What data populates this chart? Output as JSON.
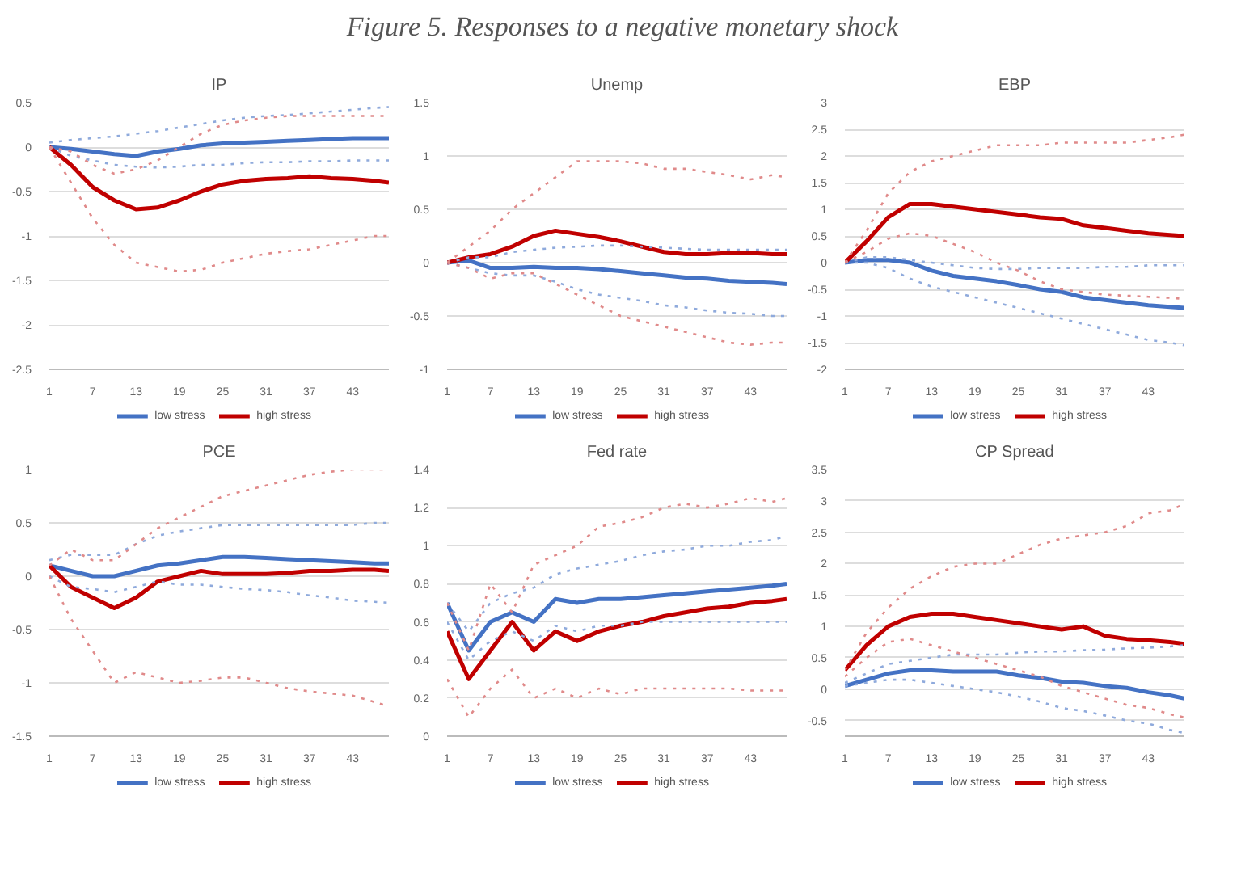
{
  "chart_data": [
    {
      "type": "line",
      "title": "IP",
      "annotations": [
        "Figure 5. Responses to a negative monetary shock"
      ],
      "x": [
        1,
        4,
        7,
        10,
        13,
        16,
        19,
        22,
        25,
        28,
        31,
        34,
        37,
        40,
        43,
        46,
        48
      ],
      "xlim": [
        1,
        48
      ],
      "xticks": [
        1,
        7,
        13,
        19,
        25,
        31,
        37,
        43
      ],
      "ylim": [
        -2.5,
        0.5
      ],
      "yticks": [
        0.5,
        0,
        -0.5,
        -1,
        -1.5,
        -2,
        -2.5
      ],
      "grid": "y",
      "legend": "bottom",
      "series": [
        {
          "color": "#8faadc",
          "line_style": "dotted",
          "values": [
            0.05,
            0.08,
            0.1,
            0.12,
            0.15,
            0.18,
            0.22,
            0.26,
            0.3,
            0.33,
            0.35,
            0.36,
            0.38,
            0.4,
            0.42,
            0.44,
            0.45
          ]
        },
        {
          "color": "#8faadc",
          "line_style": "dotted",
          "values": [
            0,
            -0.1,
            -0.15,
            -0.2,
            -0.22,
            -0.23,
            -0.22,
            -0.2,
            -0.2,
            -0.18,
            -0.17,
            -0.17,
            -0.16,
            -0.16,
            -0.15,
            -0.15,
            -0.15
          ]
        },
        {
          "color": "#e08a8a",
          "line_style": "dotted",
          "values": [
            0,
            -0.05,
            -0.2,
            -0.3,
            -0.25,
            -0.15,
            0,
            0.15,
            0.25,
            0.3,
            0.33,
            0.35,
            0.35,
            0.35,
            0.35,
            0.35,
            0.35
          ]
        },
        {
          "color": "#e08a8a",
          "line_style": "dotted",
          "values": [
            0,
            -0.4,
            -0.8,
            -1.1,
            -1.3,
            -1.35,
            -1.4,
            -1.38,
            -1.3,
            -1.25,
            -1.2,
            -1.17,
            -1.15,
            -1.1,
            -1.05,
            -1.0,
            -1.0
          ]
        },
        {
          "name": "low stress",
          "color": "#4472c4",
          "line_style": "solid",
          "values": [
            0,
            -0.02,
            -0.05,
            -0.08,
            -0.1,
            -0.05,
            -0.02,
            0.02,
            0.04,
            0.05,
            0.06,
            0.07,
            0.08,
            0.09,
            0.1,
            0.1,
            0.1
          ]
        },
        {
          "name": "high stress",
          "color": "#c00000",
          "line_style": "solid",
          "values": [
            0,
            -0.2,
            -0.45,
            -0.6,
            -0.7,
            -0.68,
            -0.6,
            -0.5,
            -0.42,
            -0.38,
            -0.36,
            -0.35,
            -0.33,
            -0.35,
            -0.36,
            -0.38,
            -0.4
          ]
        }
      ]
    },
    {
      "type": "line",
      "title": "Unemp",
      "x": [
        1,
        4,
        7,
        10,
        13,
        16,
        19,
        22,
        25,
        28,
        31,
        34,
        37,
        40,
        43,
        46,
        48
      ],
      "xlim": [
        1,
        48
      ],
      "xticks": [
        1,
        7,
        13,
        19,
        25,
        31,
        37,
        43
      ],
      "ylim": [
        -1,
        1.5
      ],
      "yticks": [
        1.5,
        1,
        0.5,
        0,
        -0.5,
        -1
      ],
      "grid": "y",
      "legend": "bottom",
      "series": [
        {
          "color": "#8faadc",
          "line_style": "dotted",
          "values": [
            0,
            0.05,
            0.05,
            0.1,
            0.12,
            0.14,
            0.15,
            0.16,
            0.16,
            0.15,
            0.14,
            0.13,
            0.12,
            0.12,
            0.12,
            0.12,
            0.12
          ]
        },
        {
          "color": "#8faadc",
          "line_style": "dotted",
          "values": [
            0,
            -0.05,
            -0.1,
            -0.12,
            -0.12,
            -0.18,
            -0.25,
            -0.3,
            -0.33,
            -0.36,
            -0.4,
            -0.42,
            -0.45,
            -0.47,
            -0.48,
            -0.5,
            -0.5
          ]
        },
        {
          "color": "#e08a8a",
          "line_style": "dotted",
          "values": [
            0,
            0.15,
            0.3,
            0.5,
            0.65,
            0.8,
            0.95,
            0.95,
            0.95,
            0.93,
            0.88,
            0.88,
            0.85,
            0.82,
            0.78,
            0.82,
            0.8
          ]
        },
        {
          "color": "#e08a8a",
          "line_style": "dotted",
          "values": [
            0,
            -0.05,
            -0.15,
            -0.1,
            -0.1,
            -0.2,
            -0.3,
            -0.4,
            -0.5,
            -0.55,
            -0.6,
            -0.65,
            -0.7,
            -0.75,
            -0.77,
            -0.75,
            -0.75
          ]
        },
        {
          "name": "low stress",
          "color": "#4472c4",
          "line_style": "solid",
          "values": [
            0,
            0.02,
            -0.05,
            -0.05,
            -0.04,
            -0.05,
            -0.05,
            -0.06,
            -0.08,
            -0.1,
            -0.12,
            -0.14,
            -0.15,
            -0.17,
            -0.18,
            -0.19,
            -0.2
          ]
        },
        {
          "name": "high stress",
          "color": "#c00000",
          "line_style": "solid",
          "values": [
            0,
            0.05,
            0.08,
            0.15,
            0.25,
            0.3,
            0.27,
            0.24,
            0.2,
            0.15,
            0.1,
            0.08,
            0.08,
            0.09,
            0.09,
            0.08,
            0.08
          ]
        }
      ]
    },
    {
      "type": "line",
      "title": "EBP",
      "x": [
        1,
        4,
        7,
        10,
        13,
        16,
        19,
        22,
        25,
        28,
        31,
        34,
        37,
        40,
        43,
        46,
        48
      ],
      "xlim": [
        1,
        48
      ],
      "xticks": [
        1,
        7,
        13,
        19,
        25,
        31,
        37,
        43
      ],
      "ylim": [
        -2,
        3
      ],
      "yticks": [
        3,
        2.5,
        2,
        1.5,
        1,
        0.5,
        0,
        -0.5,
        -1,
        -1.5,
        -2
      ],
      "grid": "y",
      "legend": "bottom",
      "series": [
        {
          "color": "#8faadc",
          "line_style": "dotted",
          "values": [
            0,
            0.1,
            0.1,
            0.05,
            0,
            -0.05,
            -0.1,
            -0.12,
            -0.12,
            -0.1,
            -0.1,
            -0.1,
            -0.08,
            -0.08,
            -0.05,
            -0.05,
            -0.05
          ]
        },
        {
          "color": "#8faadc",
          "line_style": "dotted",
          "values": [
            0,
            0,
            -0.1,
            -0.3,
            -0.45,
            -0.55,
            -0.65,
            -0.75,
            -0.85,
            -0.95,
            -1.05,
            -1.15,
            -1.25,
            -1.35,
            -1.45,
            -1.5,
            -1.55
          ]
        },
        {
          "color": "#e08a8a",
          "line_style": "dotted",
          "values": [
            0,
            0.6,
            1.3,
            1.7,
            1.9,
            2.0,
            2.1,
            2.2,
            2.2,
            2.2,
            2.25,
            2.25,
            2.25,
            2.25,
            2.3,
            2.35,
            2.4
          ]
        },
        {
          "color": "#e08a8a",
          "line_style": "dotted",
          "values": [
            0,
            0.2,
            0.45,
            0.55,
            0.5,
            0.35,
            0.2,
            0,
            -0.15,
            -0.35,
            -0.5,
            -0.55,
            -0.6,
            -0.62,
            -0.64,
            -0.66,
            -0.68
          ]
        },
        {
          "name": "low stress",
          "color": "#4472c4",
          "line_style": "solid",
          "values": [
            0,
            0.05,
            0.05,
            0,
            -0.15,
            -0.25,
            -0.3,
            -0.35,
            -0.42,
            -0.5,
            -0.55,
            -0.65,
            -0.7,
            -0.75,
            -0.8,
            -0.83,
            -0.85
          ]
        },
        {
          "name": "high stress",
          "color": "#c00000",
          "line_style": "solid",
          "values": [
            0,
            0.4,
            0.85,
            1.1,
            1.1,
            1.05,
            1.0,
            0.95,
            0.9,
            0.85,
            0.82,
            0.7,
            0.65,
            0.6,
            0.55,
            0.52,
            0.5
          ]
        }
      ]
    },
    {
      "type": "line",
      "title": "PCE",
      "x": [
        1,
        4,
        7,
        10,
        13,
        16,
        19,
        22,
        25,
        28,
        31,
        34,
        37,
        40,
        43,
        46,
        48
      ],
      "xlim": [
        1,
        48
      ],
      "xticks": [
        1,
        7,
        13,
        19,
        25,
        31,
        37,
        43
      ],
      "ylim": [
        -1.5,
        1
      ],
      "yticks": [
        1,
        0.5,
        0,
        -0.5,
        -1,
        -1.5
      ],
      "grid": "y",
      "legend": "bottom",
      "series": [
        {
          "color": "#8faadc",
          "line_style": "dotted",
          "values": [
            0.15,
            0.2,
            0.2,
            0.2,
            0.3,
            0.38,
            0.42,
            0.45,
            0.48,
            0.48,
            0.48,
            0.48,
            0.48,
            0.48,
            0.48,
            0.5,
            0.5
          ]
        },
        {
          "color": "#8faadc",
          "line_style": "dotted",
          "values": [
            0,
            -0.1,
            -0.12,
            -0.15,
            -0.1,
            -0.05,
            -0.08,
            -0.08,
            -0.1,
            -0.12,
            -0.13,
            -0.15,
            -0.18,
            -0.2,
            -0.23,
            -0.24,
            -0.25
          ]
        },
        {
          "color": "#e08a8a",
          "line_style": "dotted",
          "values": [
            0.1,
            0.25,
            0.15,
            0.15,
            0.3,
            0.45,
            0.55,
            0.65,
            0.75,
            0.8,
            0.85,
            0.9,
            0.95,
            0.98,
            1.0,
            1.0,
            1.0
          ]
        },
        {
          "color": "#e08a8a",
          "line_style": "dotted",
          "values": [
            0,
            -0.4,
            -0.7,
            -1.0,
            -0.9,
            -0.95,
            -1.0,
            -0.98,
            -0.95,
            -0.95,
            -1.0,
            -1.05,
            -1.08,
            -1.1,
            -1.12,
            -1.18,
            -1.22
          ]
        },
        {
          "name": "low stress",
          "color": "#4472c4",
          "line_style": "solid",
          "values": [
            0.1,
            0.05,
            0,
            0,
            0.05,
            0.1,
            0.12,
            0.15,
            0.18,
            0.18,
            0.17,
            0.16,
            0.15,
            0.14,
            0.13,
            0.12,
            0.12
          ]
        },
        {
          "name": "high stress",
          "color": "#c00000",
          "line_style": "solid",
          "values": [
            0.1,
            -0.1,
            -0.2,
            -0.3,
            -0.2,
            -0.05,
            0,
            0.05,
            0.02,
            0.02,
            0.02,
            0.03,
            0.05,
            0.05,
            0.06,
            0.06,
            0.05
          ]
        }
      ]
    },
    {
      "type": "line",
      "title": "Fed rate",
      "x": [
        1,
        4,
        7,
        10,
        13,
        16,
        19,
        22,
        25,
        28,
        31,
        34,
        37,
        40,
        43,
        46,
        48
      ],
      "xlim": [
        1,
        48
      ],
      "xticks": [
        1,
        7,
        13,
        19,
        25,
        31,
        37,
        43
      ],
      "ylim": [
        0,
        1.4
      ],
      "yticks": [
        1.4,
        1.2,
        1,
        0.8,
        0.6,
        0.4,
        0.2,
        0
      ],
      "grid": "y",
      "legend": "bottom",
      "series": [
        {
          "color": "#8faadc",
          "line_style": "dotted",
          "values": [
            0.7,
            0.55,
            0.7,
            0.75,
            0.78,
            0.85,
            0.88,
            0.9,
            0.92,
            0.95,
            0.97,
            0.98,
            1.0,
            1.0,
            1.02,
            1.03,
            1.05
          ]
        },
        {
          "color": "#8faadc",
          "line_style": "dotted",
          "values": [
            0.6,
            0.4,
            0.5,
            0.55,
            0.5,
            0.58,
            0.55,
            0.58,
            0.58,
            0.6,
            0.6,
            0.6,
            0.6,
            0.6,
            0.6,
            0.6,
            0.6
          ]
        },
        {
          "color": "#e08a8a",
          "line_style": "dotted",
          "values": [
            0.7,
            0.45,
            0.8,
            0.65,
            0.9,
            0.95,
            1.0,
            1.1,
            1.12,
            1.15,
            1.2,
            1.22,
            1.2,
            1.22,
            1.25,
            1.23,
            1.25
          ]
        },
        {
          "color": "#e08a8a",
          "line_style": "dotted",
          "values": [
            0.3,
            0.1,
            0.25,
            0.35,
            0.2,
            0.25,
            0.2,
            0.25,
            0.22,
            0.25,
            0.25,
            0.25,
            0.25,
            0.25,
            0.24,
            0.24,
            0.24
          ]
        },
        {
          "name": "low stress",
          "color": "#4472c4",
          "line_style": "solid",
          "values": [
            0.7,
            0.45,
            0.6,
            0.65,
            0.6,
            0.72,
            0.7,
            0.72,
            0.72,
            0.73,
            0.74,
            0.75,
            0.76,
            0.77,
            0.78,
            0.79,
            0.8
          ]
        },
        {
          "name": "high stress",
          "color": "#c00000",
          "line_style": "solid",
          "values": [
            0.55,
            0.3,
            0.45,
            0.6,
            0.45,
            0.55,
            0.5,
            0.55,
            0.58,
            0.6,
            0.63,
            0.65,
            0.67,
            0.68,
            0.7,
            0.71,
            0.72
          ]
        }
      ]
    },
    {
      "type": "line",
      "title": "CP Spread",
      "x": [
        1,
        4,
        7,
        10,
        13,
        16,
        19,
        22,
        25,
        28,
        31,
        34,
        37,
        40,
        43,
        46,
        48
      ],
      "xlim": [
        1,
        48
      ],
      "xticks": [
        1,
        7,
        13,
        19,
        25,
        31,
        37,
        43
      ],
      "ylim": [
        -0.75,
        3.5
      ],
      "yticks": [
        3.5,
        3,
        2.5,
        2,
        1.5,
        1,
        0.5,
        0,
        -0.5
      ],
      "grid": "y",
      "legend": "bottom",
      "series": [
        {
          "color": "#8faadc",
          "line_style": "dotted",
          "values": [
            0.1,
            0.25,
            0.4,
            0.45,
            0.5,
            0.55,
            0.55,
            0.55,
            0.58,
            0.6,
            0.6,
            0.62,
            0.63,
            0.65,
            0.66,
            0.68,
            0.7
          ]
        },
        {
          "color": "#8faadc",
          "line_style": "dotted",
          "values": [
            0.05,
            0.1,
            0.15,
            0.15,
            0.1,
            0.05,
            0,
            -0.05,
            -0.12,
            -0.2,
            -0.3,
            -0.35,
            -0.42,
            -0.5,
            -0.55,
            -0.65,
            -0.7
          ]
        },
        {
          "color": "#e08a8a",
          "line_style": "dotted",
          "values": [
            0.3,
            0.9,
            1.3,
            1.6,
            1.8,
            1.95,
            2.0,
            2.0,
            2.15,
            2.3,
            2.4,
            2.45,
            2.5,
            2.6,
            2.8,
            2.85,
            2.95
          ]
        },
        {
          "color": "#e08a8a",
          "line_style": "dotted",
          "values": [
            0.2,
            0.5,
            0.75,
            0.8,
            0.7,
            0.6,
            0.5,
            0.4,
            0.3,
            0.2,
            0.05,
            -0.05,
            -0.15,
            -0.25,
            -0.3,
            -0.4,
            -0.45
          ]
        },
        {
          "name": "low stress",
          "color": "#4472c4",
          "line_style": "solid",
          "values": [
            0.05,
            0.15,
            0.25,
            0.3,
            0.3,
            0.28,
            0.28,
            0.28,
            0.22,
            0.18,
            0.12,
            0.1,
            0.05,
            0.02,
            -0.05,
            -0.1,
            -0.15
          ]
        },
        {
          "name": "high stress",
          "color": "#c00000",
          "line_style": "solid",
          "values": [
            0.3,
            0.7,
            1.0,
            1.15,
            1.2,
            1.2,
            1.15,
            1.1,
            1.05,
            1.0,
            0.95,
            1.0,
            0.85,
            0.8,
            0.78,
            0.75,
            0.72
          ]
        }
      ]
    }
  ]
}
